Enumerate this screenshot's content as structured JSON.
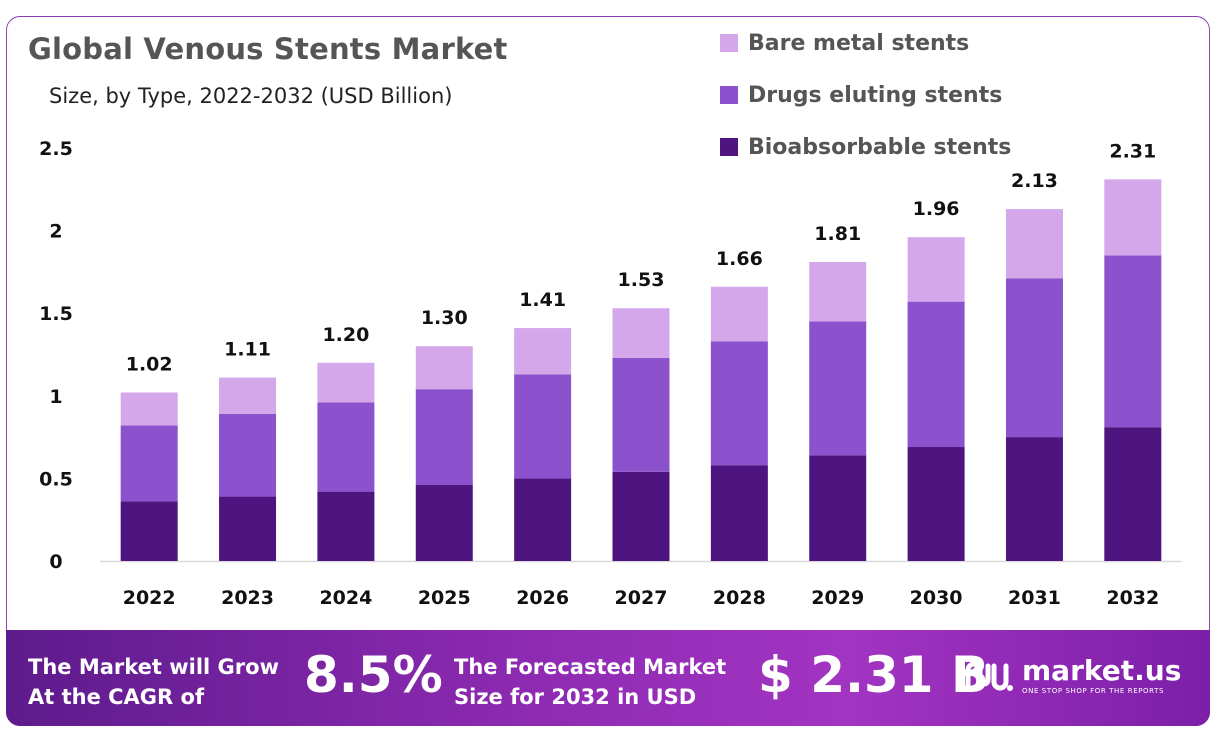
{
  "title": "Global Venous Stents Market",
  "subtitle": "Size, by Type, 2022-2032 (USD Billion)",
  "colors": {
    "bare_metal": "#d3a7ea",
    "drug_eluting": "#8c52cd",
    "bioabsorbable": "#4e1580",
    "footer_start": "#5e1b8c",
    "footer_end": "#a234c2"
  },
  "legend": [
    {
      "label": "Bare metal stents",
      "color": "#d3a7ea"
    },
    {
      "label": "Drugs eluting stents",
      "color": "#8c52cd"
    },
    {
      "label": "Bioabsorbable stents",
      "color": "#4e1580"
    }
  ],
  "chart_data": {
    "type": "bar",
    "stacked": true,
    "categories": [
      "2022",
      "2023",
      "2024",
      "2025",
      "2026",
      "2027",
      "2028",
      "2029",
      "2030",
      "2031",
      "2032"
    ],
    "series": [
      {
        "name": "Bioabsorbable stents",
        "values": [
          0.36,
          0.39,
          0.42,
          0.46,
          0.5,
          0.54,
          0.58,
          0.64,
          0.69,
          0.75,
          0.81
        ]
      },
      {
        "name": "Drugs eluting stents",
        "values": [
          0.46,
          0.5,
          0.54,
          0.58,
          0.63,
          0.69,
          0.75,
          0.81,
          0.88,
          0.96,
          1.04
        ]
      },
      {
        "name": "Bare metal stents",
        "values": [
          0.2,
          0.22,
          0.24,
          0.26,
          0.28,
          0.3,
          0.33,
          0.36,
          0.39,
          0.42,
          0.46
        ]
      }
    ],
    "totals": [
      "1.02",
      "1.11",
      "1.20",
      "1.30",
      "1.41",
      "1.53",
      "1.66",
      "1.81",
      "1.96",
      "2.13",
      "2.31"
    ],
    "y_ticks": [
      "0",
      "0.5",
      "1",
      "1.5",
      "2",
      "2.5"
    ],
    "ylim": [
      0,
      2.5
    ],
    "grid": false,
    "legend_position": "top-right"
  },
  "footer": {
    "cagr_line1": "The Market will Grow",
    "cagr_line2": "At the CAGR of",
    "cagr_value": "8.5%",
    "size_line1": "The Forecasted Market",
    "size_line2": "Size for 2032 in USD",
    "size_value": "$ 2.31 B",
    "brand_name": "market.us",
    "brand_tagline": "ONE STOP SHOP FOR THE REPORTS"
  }
}
